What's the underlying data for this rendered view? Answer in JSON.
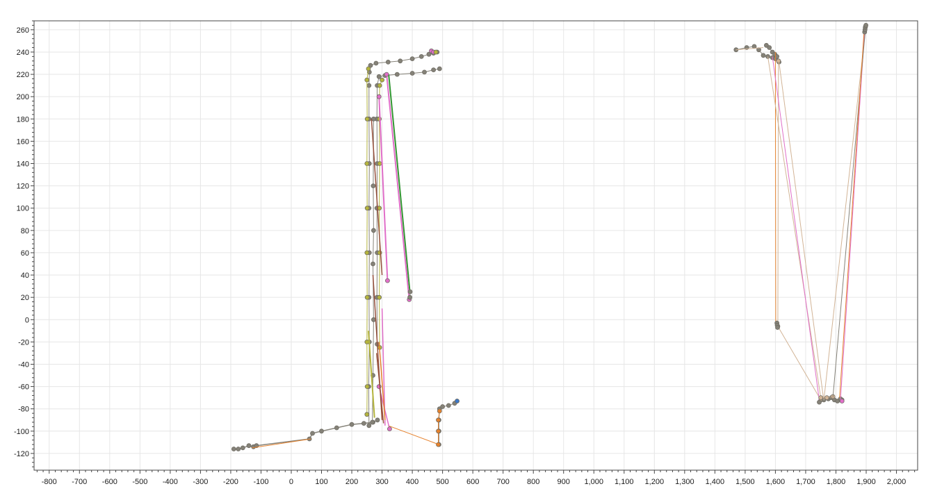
{
  "chart_data": {
    "type": "scatter",
    "title": "",
    "xlabel": "",
    "ylabel": "",
    "grid": true,
    "legend": "none",
    "xlim": [
      -850,
      2070
    ],
    "ylim": [
      -135,
      268
    ],
    "x_ticks": [
      -800,
      -700,
      -600,
      -500,
      -400,
      -300,
      -200,
      -100,
      0,
      100,
      200,
      300,
      400,
      500,
      600,
      700,
      800,
      900,
      1000,
      1100,
      1200,
      1300,
      1400,
      1500,
      1600,
      1700,
      1800,
      1900,
      2000
    ],
    "x_tick_labels": [
      "-800",
      "-700",
      "-600",
      "-500",
      "-400",
      "-300",
      "-200",
      "-100",
      "0",
      "100",
      "200",
      "300",
      "400",
      "500",
      "600",
      "700",
      "800",
      "900",
      "1,000",
      "1,100",
      "1,200",
      "1,300",
      "1,400",
      "1,500",
      "1,600",
      "1,700",
      "1,800",
      "1,900",
      "2,000"
    ],
    "y_ticks": [
      260,
      240,
      220,
      200,
      180,
      160,
      140,
      120,
      100,
      80,
      60,
      40,
      20,
      0,
      -20,
      -40,
      -60,
      -80,
      -100,
      -120
    ],
    "y_tick_labels": [
      "260",
      "240",
      "220",
      "200",
      "180",
      "160",
      "140",
      "120",
      "100",
      "80",
      "60",
      "40",
      "20",
      "0",
      "-20",
      "-40",
      "-60",
      "-80",
      "-100",
      "-120"
    ],
    "colors": {
      "marker_gray": "#858278",
      "olive": "#b4b43c",
      "pink": "#e06ec8",
      "orange": "#e6822d",
      "green": "#329632",
      "brown": "#96503c",
      "light": "#d2b496",
      "blue": "#3c78c8",
      "grid": "#e6e6e6",
      "axis": "#444444"
    },
    "series": [
      {
        "color": "marker_gray",
        "stroke_width": 1.5,
        "markers": true,
        "points": [
          [
            -190,
            -116
          ],
          [
            -175,
            -116
          ],
          [
            -160,
            -115
          ],
          [
            -140,
            -113
          ],
          [
            -125,
            -114
          ],
          [
            -115,
            -113
          ],
          [
            60,
            -107
          ],
          [
            70,
            -102
          ],
          [
            100,
            -100
          ],
          [
            150,
            -97
          ],
          [
            200,
            -94
          ],
          [
            240,
            -93
          ],
          [
            270,
            -92
          ],
          [
            285,
            -90
          ]
        ]
      },
      {
        "color": "orange",
        "stroke_width": 1,
        "markers": false,
        "points": [
          [
            -130,
            -115
          ],
          [
            65,
            -107
          ]
        ]
      },
      {
        "color": "marker_gray",
        "stroke_width": 1,
        "markers": true,
        "points": [
          [
            257,
            -95
          ],
          [
            256,
            -60
          ],
          [
            258,
            -20
          ],
          [
            257,
            20
          ],
          [
            258,
            60
          ],
          [
            257,
            100
          ],
          [
            258,
            140
          ],
          [
            257,
            180
          ],
          [
            257,
            210
          ],
          [
            258,
            222
          ],
          [
            262,
            228
          ],
          [
            280,
            230
          ],
          [
            320,
            231
          ],
          [
            360,
            232
          ],
          [
            400,
            234
          ],
          [
            430,
            236
          ],
          [
            455,
            238
          ],
          [
            470,
            239
          ],
          [
            482,
            240
          ]
        ]
      },
      {
        "color": "marker_gray",
        "stroke_width": 1,
        "markers": true,
        "points": [
          [
            284,
            -22
          ],
          [
            283,
            20
          ],
          [
            284,
            60
          ],
          [
            283,
            100
          ],
          [
            284,
            140
          ],
          [
            283,
            180
          ],
          [
            284,
            210
          ],
          [
            290,
            218
          ],
          [
            310,
            219
          ],
          [
            350,
            220
          ],
          [
            400,
            221
          ],
          [
            440,
            222
          ],
          [
            470,
            224
          ],
          [
            490,
            225
          ]
        ]
      },
      {
        "color": "olive",
        "stroke_width": 1,
        "markers": true,
        "points": [
          [
            250,
            -85
          ],
          [
            251,
            -60
          ],
          [
            250,
            -20
          ],
          [
            251,
            20
          ],
          [
            250,
            60
          ],
          [
            251,
            100
          ],
          [
            250,
            140
          ],
          [
            251,
            180
          ],
          [
            250,
            215
          ],
          [
            255,
            225
          ]
        ]
      },
      {
        "color": "olive",
        "stroke_width": 1,
        "markers": true,
        "points": [
          [
            292,
            -25
          ],
          [
            291,
            20
          ],
          [
            292,
            60
          ],
          [
            291,
            100
          ],
          [
            292,
            140
          ],
          [
            291,
            180
          ],
          [
            292,
            210
          ],
          [
            300,
            215
          ]
        ]
      },
      {
        "color": "marker_gray",
        "stroke_width": 1,
        "markers": true,
        "points": [
          [
            268,
            -92
          ],
          [
            270,
            -50
          ],
          [
            272,
            0
          ],
          [
            270,
            50
          ],
          [
            272,
            80
          ],
          [
            271,
            120
          ],
          [
            272,
            180
          ]
        ]
      },
      {
        "color": "marker_gray",
        "stroke_width": 1,
        "markers": true,
        "points": [
          [
            488,
            -112
          ],
          [
            488,
            -100
          ],
          [
            488,
            -90
          ],
          [
            490,
            -80
          ],
          [
            500,
            -78
          ],
          [
            520,
            -77
          ],
          [
            540,
            -75
          ],
          [
            548,
            -73
          ]
        ]
      },
      {
        "color": "orange",
        "stroke_width": 1,
        "markers": true,
        "points": [
          [
            486,
            -112
          ],
          [
            486,
            -100
          ],
          [
            486,
            -90
          ],
          [
            490,
            -82
          ]
        ]
      },
      {
        "color": "blue",
        "stroke_width": 1,
        "markers": true,
        "points": [
          [
            548,
            -73
          ]
        ]
      },
      {
        "color": "pink",
        "stroke_width": 1,
        "markers": true,
        "points": [
          [
            463,
            241
          ],
          [
            470,
            240
          ]
        ]
      },
      {
        "color": "olive",
        "stroke_width": 1,
        "markers": true,
        "points": [
          [
            478,
            240
          ]
        ]
      },
      {
        "color": "orange",
        "stroke_width": 1,
        "markers": false,
        "points": [
          [
            320,
            -95
          ],
          [
            488,
            -112
          ]
        ]
      },
      {
        "color": "green",
        "stroke_width": 2,
        "markers": false,
        "points": [
          [
            322,
            220
          ],
          [
            392,
            25
          ]
        ]
      },
      {
        "color": "pink",
        "stroke_width": 2,
        "markers": true,
        "points": [
          [
            315,
            220
          ],
          [
            390,
            18
          ]
        ]
      },
      {
        "color": "pink",
        "stroke_width": 2,
        "markers": true,
        "points": [
          [
            290,
            200
          ],
          [
            318,
            35
          ]
        ]
      },
      {
        "color": "marker_gray",
        "stroke_width": 1,
        "markers": true,
        "points": [
          [
            392,
            20
          ],
          [
            393,
            25
          ]
        ]
      },
      {
        "color": "brown",
        "stroke_width": 1.5,
        "markers": false,
        "points": [
          [
            265,
            180
          ],
          [
            300,
            40
          ]
        ]
      },
      {
        "color": "pink",
        "stroke_width": 1.5,
        "markers": false,
        "points": [
          [
            300,
            10
          ],
          [
            310,
            -95
          ]
        ]
      },
      {
        "color": "brown",
        "stroke_width": 1.5,
        "markers": false,
        "points": [
          [
            270,
            40
          ],
          [
            300,
            -90
          ]
        ]
      },
      {
        "color": "olive",
        "stroke_width": 2,
        "markers": false,
        "points": [
          [
            255,
            -10
          ],
          [
            275,
            -88
          ]
        ]
      },
      {
        "color": "pink",
        "stroke_width": 1.5,
        "markers": true,
        "points": [
          [
            290,
            -60
          ],
          [
            325,
            -98
          ]
        ]
      },
      {
        "color": "orange",
        "stroke_width": 1.5,
        "markers": false,
        "points": [
          [
            290,
            -20
          ],
          [
            310,
            -90
          ]
        ]
      },
      {
        "color": "brown",
        "stroke_width": 1.5,
        "markers": false,
        "points": [
          [
            282,
            -30
          ],
          [
            305,
            -93
          ]
        ]
      },
      {
        "color": "marker_gray",
        "stroke_width": 1,
        "markers": true,
        "points": [
          [
            1470,
            242
          ],
          [
            1505,
            244
          ],
          [
            1530,
            245
          ],
          [
            1545,
            242
          ],
          [
            1560,
            237
          ],
          [
            1575,
            236
          ],
          [
            1590,
            235
          ],
          [
            1600,
            234
          ],
          [
            1610,
            232
          ]
        ]
      },
      {
        "color": "marker_gray",
        "stroke_width": 1,
        "markers": true,
        "points": [
          [
            1570,
            246
          ],
          [
            1580,
            244
          ],
          [
            1590,
            240
          ],
          [
            1598,
            238
          ],
          [
            1605,
            236
          ],
          [
            1612,
            231
          ]
        ]
      },
      {
        "color": "light",
        "stroke_width": 1,
        "markers": false,
        "points": [
          [
            1470,
            242
          ],
          [
            1560,
            244
          ]
        ]
      },
      {
        "color": "light",
        "stroke_width": 1,
        "markers": true,
        "points": [
          [
            1610,
            232
          ],
          [
            1608,
            -6
          ],
          [
            1750,
            -72
          ]
        ]
      },
      {
        "color": "orange",
        "stroke_width": 1,
        "markers": false,
        "points": [
          [
            1600,
            240
          ],
          [
            1601,
            -4
          ]
        ]
      },
      {
        "color": "light",
        "stroke_width": 1,
        "markers": false,
        "points": [
          [
            1575,
            236
          ],
          [
            1750,
            -70
          ]
        ]
      },
      {
        "color": "light",
        "stroke_width": 1,
        "markers": false,
        "points": [
          [
            1612,
            231
          ],
          [
            1760,
            -73
          ]
        ]
      },
      {
        "color": "pink",
        "stroke_width": 1,
        "markers": false,
        "points": [
          [
            1590,
            236
          ],
          [
            1745,
            -72
          ]
        ]
      },
      {
        "color": "marker_gray",
        "stroke_width": 1,
        "markers": true,
        "points": [
          [
            1605,
            -3
          ],
          [
            1606,
            -5
          ],
          [
            1607,
            -7
          ]
        ]
      },
      {
        "color": "marker_gray",
        "stroke_width": 1,
        "markers": true,
        "points": [
          [
            1745,
            -74
          ],
          [
            1760,
            -72
          ],
          [
            1775,
            -71
          ],
          [
            1785,
            -70
          ],
          [
            1795,
            -72
          ],
          [
            1805,
            -73
          ],
          [
            1815,
            -71
          ],
          [
            1820,
            -72
          ]
        ]
      },
      {
        "color": "light",
        "stroke_width": 1,
        "markers": true,
        "points": [
          [
            1750,
            -70
          ],
          [
            1770,
            -70
          ],
          [
            1790,
            -69
          ]
        ]
      },
      {
        "color": "pink",
        "stroke_width": 1,
        "markers": true,
        "points": [
          [
            1820,
            -73
          ]
        ]
      },
      {
        "color": "light",
        "stroke_width": 1,
        "markers": false,
        "points": [
          [
            1760,
            -72
          ],
          [
            1897,
            258
          ]
        ]
      },
      {
        "color": "pink",
        "stroke_width": 1,
        "markers": false,
        "points": [
          [
            1815,
            -72
          ],
          [
            1895,
            260
          ]
        ]
      },
      {
        "color": "marker_gray",
        "stroke_width": 1,
        "markers": false,
        "points": [
          [
            1790,
            -70
          ],
          [
            1898,
            262
          ]
        ]
      },
      {
        "color": "orange",
        "stroke_width": 1,
        "markers": false,
        "points": [
          [
            1812,
            -70
          ],
          [
            1893,
            259
          ]
        ]
      },
      {
        "color": "marker_gray",
        "stroke_width": 1,
        "markers": true,
        "points": [
          [
            1895,
            258
          ],
          [
            1896,
            260
          ],
          [
            1897,
            262
          ],
          [
            1898,
            263
          ],
          [
            1899,
            264
          ]
        ]
      }
    ]
  }
}
